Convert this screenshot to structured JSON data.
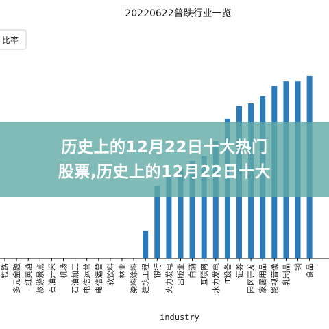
{
  "banner": {
    "line1": "历史上的12月22日十大热门",
    "line2": "股票,历史上的12月22日十大"
  },
  "colors": {
    "bar": "#2b7bba",
    "axis": "#000000",
    "banner": "#60aaa5"
  },
  "chart_data": {
    "type": "bar",
    "title": "20220622普跌行业一览",
    "legend": {
      "label": "比率",
      "placement": "top-left"
    },
    "xlabel": "industry",
    "ylabel": "",
    "categories": [
      "铁路",
      "多元金融",
      "红黄酒",
      "旅游景点",
      "石油开采",
      "机场",
      "石油加工",
      "电信运营",
      "电信运营",
      "软饮料",
      "林业",
      "染料涂料",
      "建筑工程",
      "银行",
      "火力发电",
      "出版业",
      "白酒",
      "互联网",
      "水力发电",
      "IT设备",
      "证券",
      "园区开发",
      "家居用品",
      "影视音像",
      "乳制品",
      "铜",
      "食品"
    ],
    "values": [
      0,
      0,
      0,
      0,
      0,
      0,
      0,
      0,
      0,
      0,
      0,
      0,
      0.11,
      0.29,
      0.33,
      0.36,
      0.39,
      0.41,
      0.47,
      0.56,
      0.61,
      0.62,
      0.65,
      0.69,
      0.71,
      0.71,
      0.73
    ],
    "ylim": [
      0,
      0.76
    ]
  }
}
